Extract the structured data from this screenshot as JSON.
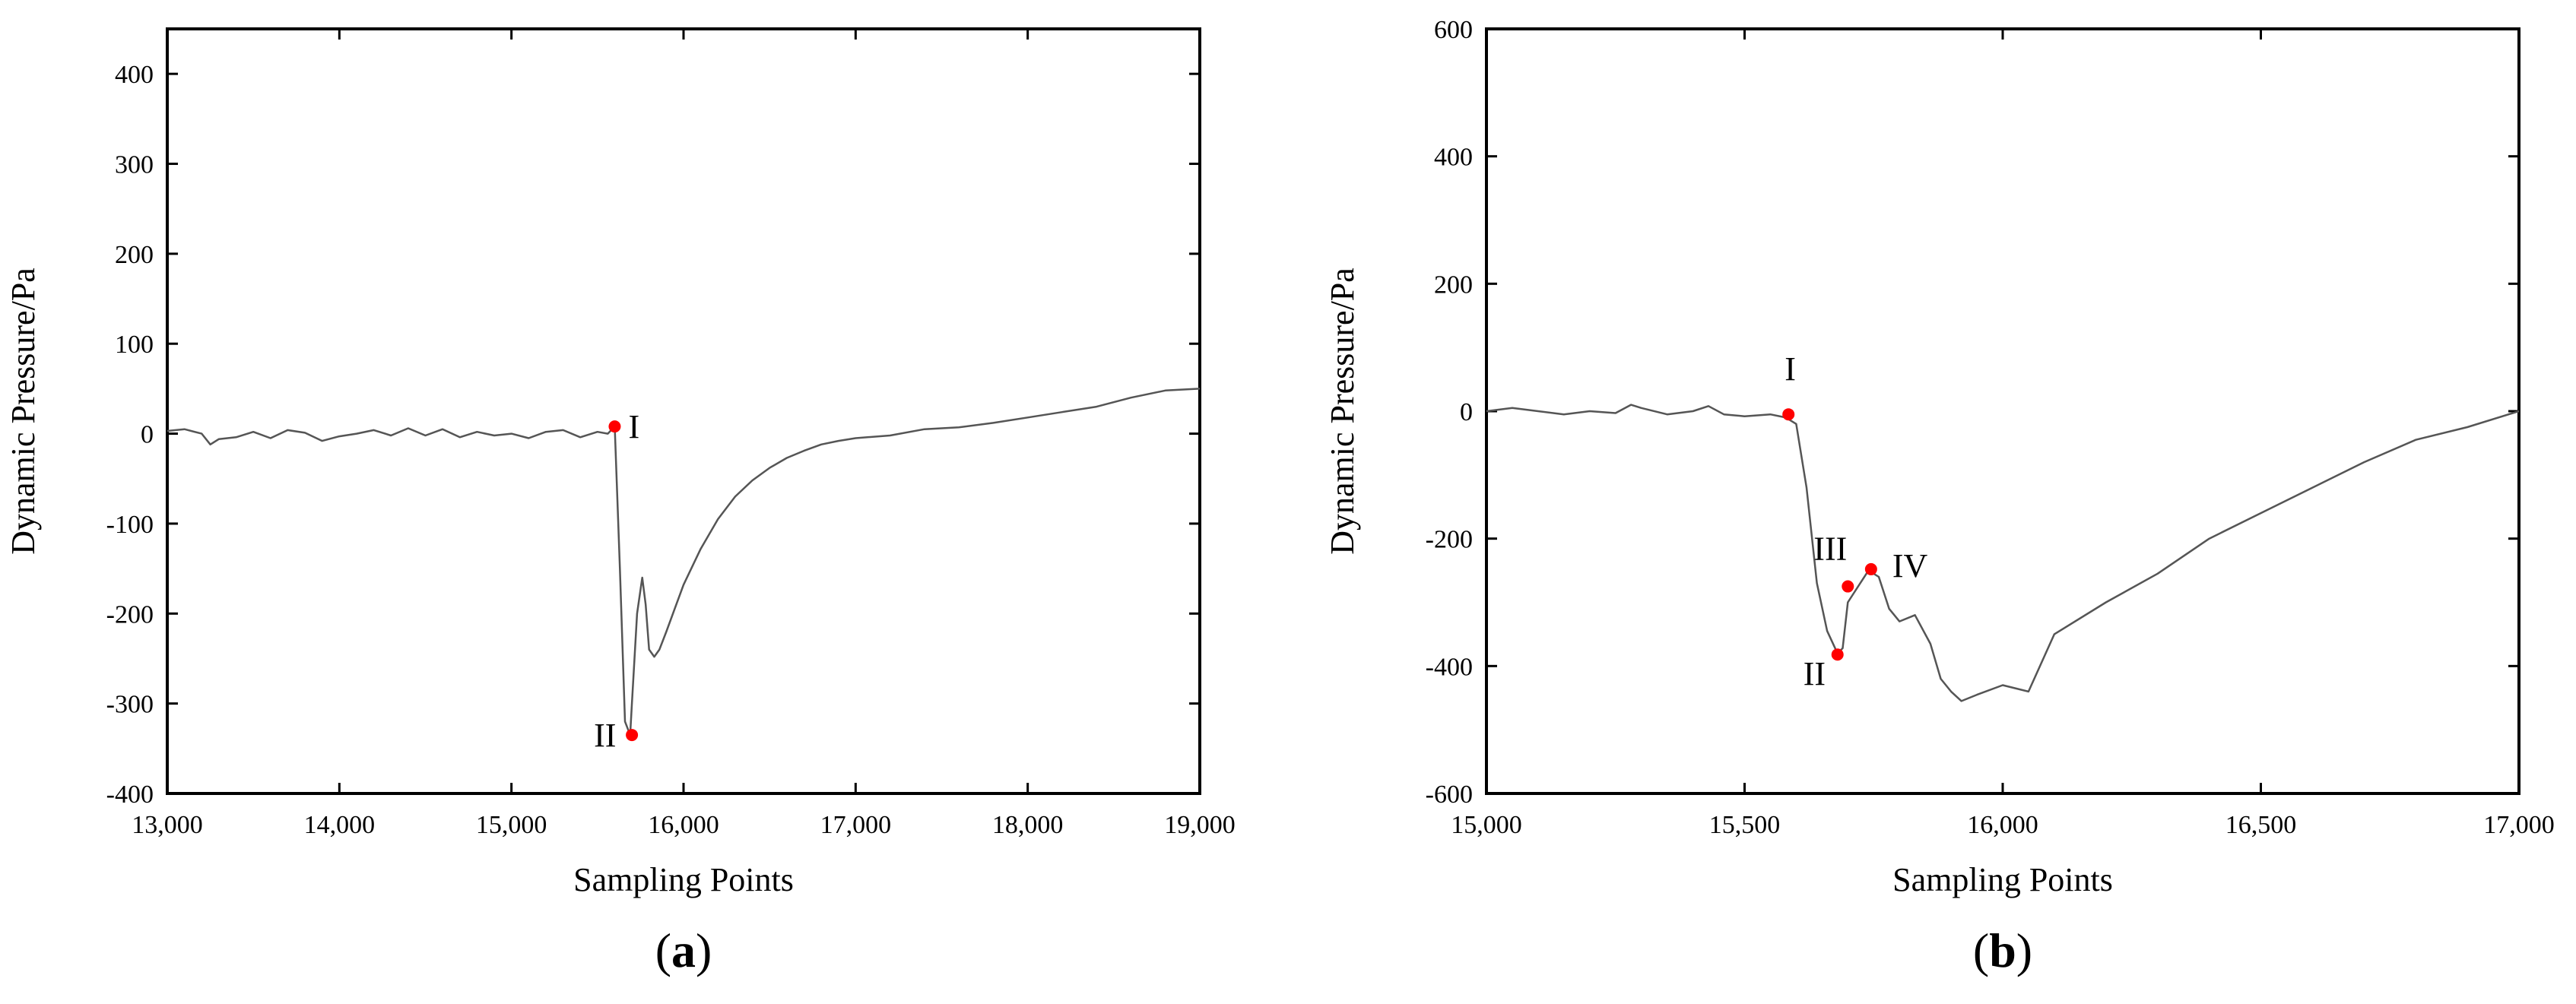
{
  "chart_data": [
    {
      "type": "line",
      "panel_label": "a",
      "xlabel": "Sampling Points",
      "ylabel": "Dynamic Pressure/Pa",
      "xlim": [
        13000,
        19000
      ],
      "ylim": [
        -400,
        450
      ],
      "xticks": [
        13000,
        14000,
        15000,
        16000,
        17000,
        18000,
        19000
      ],
      "xtick_labels": [
        "13,000",
        "14,000",
        "15,000",
        "16,000",
        "17,000",
        "18,000",
        "19,000"
      ],
      "yticks": [
        -400,
        -300,
        -200,
        -100,
        0,
        100,
        200,
        300,
        400
      ],
      "ytick_labels": [
        "-400",
        "-300",
        "-200",
        "-100",
        "0",
        "100",
        "200",
        "300",
        "400"
      ],
      "grid": false,
      "line_color": "#555555",
      "marker_color": "#ff0000",
      "series": [
        {
          "x": [
            13000,
            13100,
            13200,
            13250,
            13300,
            13400,
            13500,
            13600,
            13700,
            13800,
            13900,
            14000,
            14100,
            14200,
            14300,
            14400,
            14500,
            14600,
            14700,
            14800,
            14900,
            15000,
            15100,
            15200,
            15300,
            15400,
            15500,
            15560,
            15600,
            15630,
            15660,
            15690,
            15700,
            15730,
            15760,
            15780,
            15800,
            15830,
            15860,
            15900,
            16000,
            16100,
            16200,
            16300,
            16400,
            16500,
            16600,
            16700,
            16800,
            16900,
            17000,
            17200,
            17400,
            17600,
            17800,
            18000,
            18200,
            18400,
            18600,
            18800,
            19000
          ],
          "y": [
            3,
            5,
            0,
            -12,
            -6,
            -4,
            2,
            -5,
            4,
            1,
            -8,
            -3,
            0,
            4,
            -2,
            6,
            -2,
            5,
            -4,
            2,
            -2,
            0,
            -5,
            2,
            4,
            -4,
            2,
            0,
            8,
            -150,
            -320,
            -335,
            -300,
            -200,
            -160,
            -190,
            -240,
            -248,
            -240,
            -220,
            -168,
            -128,
            -95,
            -70,
            -52,
            -38,
            -27,
            -19,
            -12,
            -8,
            -5,
            -2,
            5,
            7,
            12,
            18,
            24,
            30,
            40,
            48,
            50
          ]
        }
      ],
      "markers": [
        {
          "label": "I",
          "x": 15600,
          "y": 8
        },
        {
          "label": "II",
          "x": 15700,
          "y": -335
        }
      ]
    },
    {
      "type": "line",
      "panel_label": "b",
      "xlabel": "Sampling Points",
      "ylabel": "Dynamic Pressure/Pa",
      "xlim": [
        15000,
        17000
      ],
      "ylim": [
        -600,
        600
      ],
      "xticks": [
        15000,
        15500,
        16000,
        16500,
        17000
      ],
      "xtick_labels": [
        "15,000",
        "15,500",
        "16,000",
        "16,500",
        "17,000"
      ],
      "yticks": [
        -600,
        -400,
        -200,
        0,
        200,
        400,
        600
      ],
      "ytick_labels": [
        "-600",
        "-400",
        "-200",
        "0",
        "200",
        "400",
        "600"
      ],
      "grid": false,
      "line_color": "#555555",
      "marker_color": "#ff0000",
      "series": [
        {
          "x": [
            15000,
            15050,
            15100,
            15150,
            15200,
            15250,
            15280,
            15300,
            15350,
            15400,
            15430,
            15460,
            15500,
            15550,
            15580,
            15600,
            15620,
            15640,
            15660,
            15680,
            15690,
            15700,
            15720,
            15740,
            15760,
            15780,
            15800,
            15830,
            15860,
            15880,
            15900,
            15920,
            15950,
            16000,
            16050,
            16100,
            16200,
            16300,
            16400,
            16500,
            16600,
            16700,
            16800,
            16900,
            17000
          ],
          "y": [
            0,
            5,
            0,
            -5,
            0,
            -3,
            10,
            5,
            -5,
            0,
            8,
            -5,
            -8,
            -5,
            -10,
            -20,
            -120,
            -270,
            -345,
            -380,
            -372,
            -300,
            -275,
            -250,
            -260,
            -310,
            -330,
            -320,
            -365,
            -420,
            -440,
            -455,
            -445,
            -430,
            -440,
            -350,
            -300,
            -255,
            -200,
            -160,
            -120,
            -80,
            -45,
            -25,
            0
          ]
        }
      ],
      "markers": [
        {
          "label": "I",
          "x": 15585,
          "y": -5
        },
        {
          "label": "II",
          "x": 15680,
          "y": -382
        },
        {
          "label": "III",
          "x": 15700,
          "y": -275
        },
        {
          "label": "IV",
          "x": 15745,
          "y": -248
        }
      ]
    }
  ]
}
